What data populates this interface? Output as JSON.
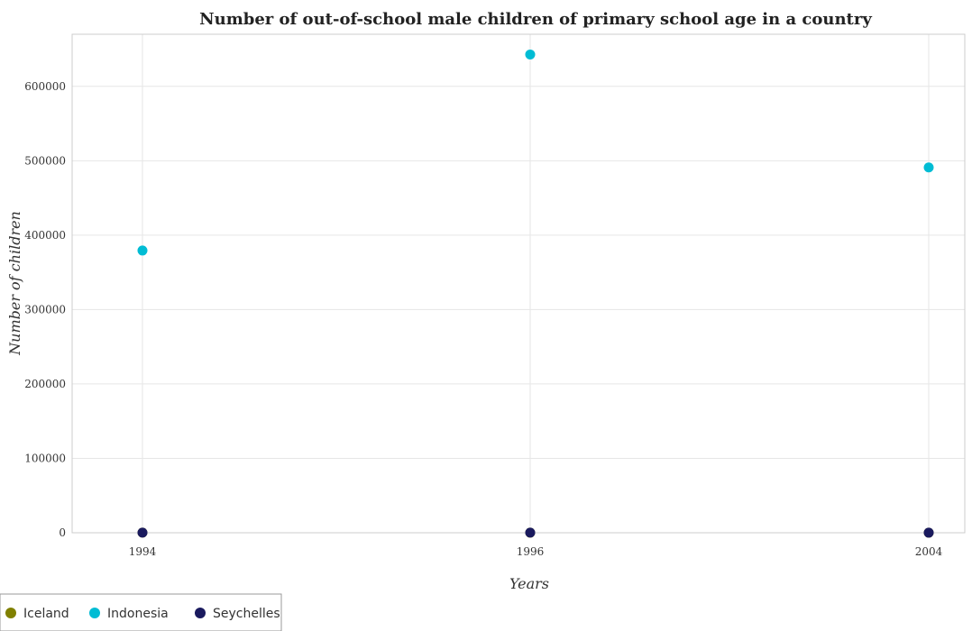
{
  "chart_data": {
    "type": "scatter",
    "title": "Number of out-of-school male children of primary school age in a country",
    "xlabel": "Years",
    "ylabel": "Number of children",
    "categories": [
      "1994",
      "1996",
      "2004"
    ],
    "ylim": [
      0,
      670000
    ],
    "yticks": [
      {
        "value": 0,
        "label": "0"
      },
      {
        "value": 100000,
        "label": "100000"
      },
      {
        "value": 200000,
        "label": "200000"
      },
      {
        "value": 300000,
        "label": "300000"
      },
      {
        "value": 400000,
        "label": "400000"
      },
      {
        "value": 500000,
        "label": "500000"
      },
      {
        "value": 600000,
        "label": "600000"
      }
    ],
    "grid": true,
    "legend_position": "bottom-left",
    "series": [
      {
        "name": "Iceland",
        "color": "#808000",
        "values": [
          100,
          80,
          60
        ]
      },
      {
        "name": "Indonesia",
        "color": "#00bcd4",
        "values": [
          379300,
          642800,
          491000
        ]
      },
      {
        "name": "Seychelles",
        "color": "#1a1a5e",
        "values": [
          150,
          120,
          90
        ]
      }
    ]
  }
}
